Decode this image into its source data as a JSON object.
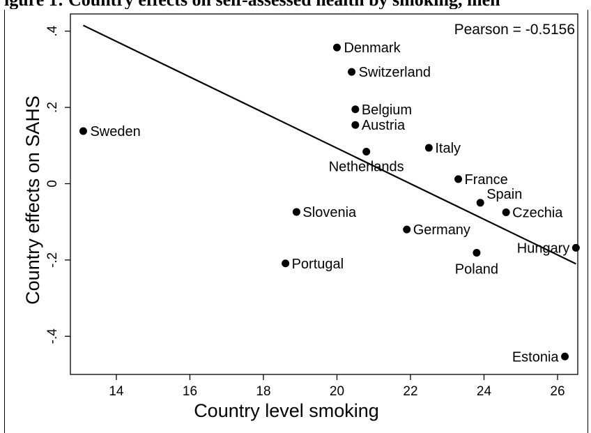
{
  "figure": {
    "title_fragment": "igure 1: Country effects on self-assessed health by smoking, men"
  },
  "chart_data": {
    "type": "scatter",
    "title": "",
    "xlabel": "Country level smoking",
    "ylabel": "Country effects on SAHS",
    "xlim": [
      12.75,
      26.55
    ],
    "ylim": [
      -0.5,
      0.445
    ],
    "xticks": [
      14,
      16,
      18,
      20,
      22,
      24,
      26
    ],
    "xtick_labels": [
      "14",
      "16",
      "18",
      "20",
      "22",
      "24",
      "26"
    ],
    "yticks": [
      -0.4,
      -0.2,
      0,
      0.2,
      0.4
    ],
    "ytick_labels": [
      "-.4",
      "-.2",
      "0",
      ".2",
      ".4"
    ],
    "grid": false,
    "annotation": "Pearson = -0.5156",
    "fit_line": {
      "x": [
        13.1,
        26.5
      ],
      "y": [
        0.415,
        -0.21
      ]
    },
    "points": [
      {
        "label": "Sweden",
        "x": 13.1,
        "y": 0.138
      },
      {
        "label": "Denmark",
        "x": 20.0,
        "y": 0.357
      },
      {
        "label": "Switzerland",
        "x": 20.4,
        "y": 0.293
      },
      {
        "label": "Belgium",
        "x": 20.5,
        "y": 0.195
      },
      {
        "label": "Austria",
        "x": 20.5,
        "y": 0.154
      },
      {
        "label": "Netherlands",
        "x": 20.8,
        "y": 0.084
      },
      {
        "label": "Italy",
        "x": 22.5,
        "y": 0.094
      },
      {
        "label": "France",
        "x": 23.3,
        "y": 0.012
      },
      {
        "label": "Spain",
        "x": 23.9,
        "y": -0.05
      },
      {
        "label": "Czechia",
        "x": 24.6,
        "y": -0.075
      },
      {
        "label": "Slovenia",
        "x": 18.9,
        "y": -0.074
      },
      {
        "label": "Germany",
        "x": 21.9,
        "y": -0.12
      },
      {
        "label": "Hungary",
        "x": 26.5,
        "y": -0.168
      },
      {
        "label": "Poland",
        "x": 23.8,
        "y": -0.181
      },
      {
        "label": "Portugal",
        "x": 18.6,
        "y": -0.209
      },
      {
        "label": "Estonia",
        "x": 26.2,
        "y": -0.453
      }
    ]
  }
}
